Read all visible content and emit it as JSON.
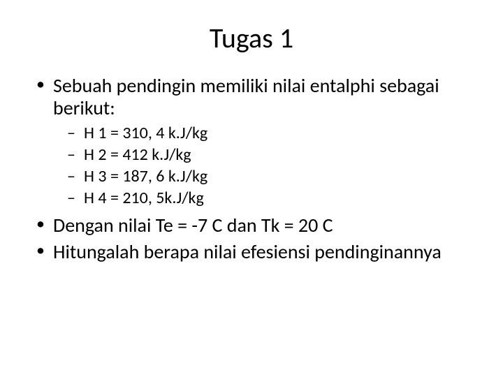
{
  "slide": {
    "title": "Tugas 1",
    "title_fontsize": 40,
    "body_fontsize_l1": 28,
    "body_fontsize_l2": 24,
    "background_color": "#ffffff",
    "text_color": "#000000",
    "bullets": [
      {
        "level": 1,
        "text": "Sebuah pendingin memiliki nilai entalphi sebagai berikut:"
      },
      {
        "level": 2,
        "text": "H 1 = 310, 4 k.J/kg"
      },
      {
        "level": 2,
        "text": "H 2 = 412 k.J/kg"
      },
      {
        "level": 2,
        "text": "H 3 = 187, 6 k.J/kg"
      },
      {
        "level": 2,
        "text": "H 4 = 210, 5k.J/kg"
      },
      {
        "level": 1,
        "text": "Dengan nilai Te = -7 C dan Tk = 20 C"
      },
      {
        "level": 1,
        "text": "Hitungalah berapa nilai efesiensi pendinginannya"
      }
    ]
  }
}
